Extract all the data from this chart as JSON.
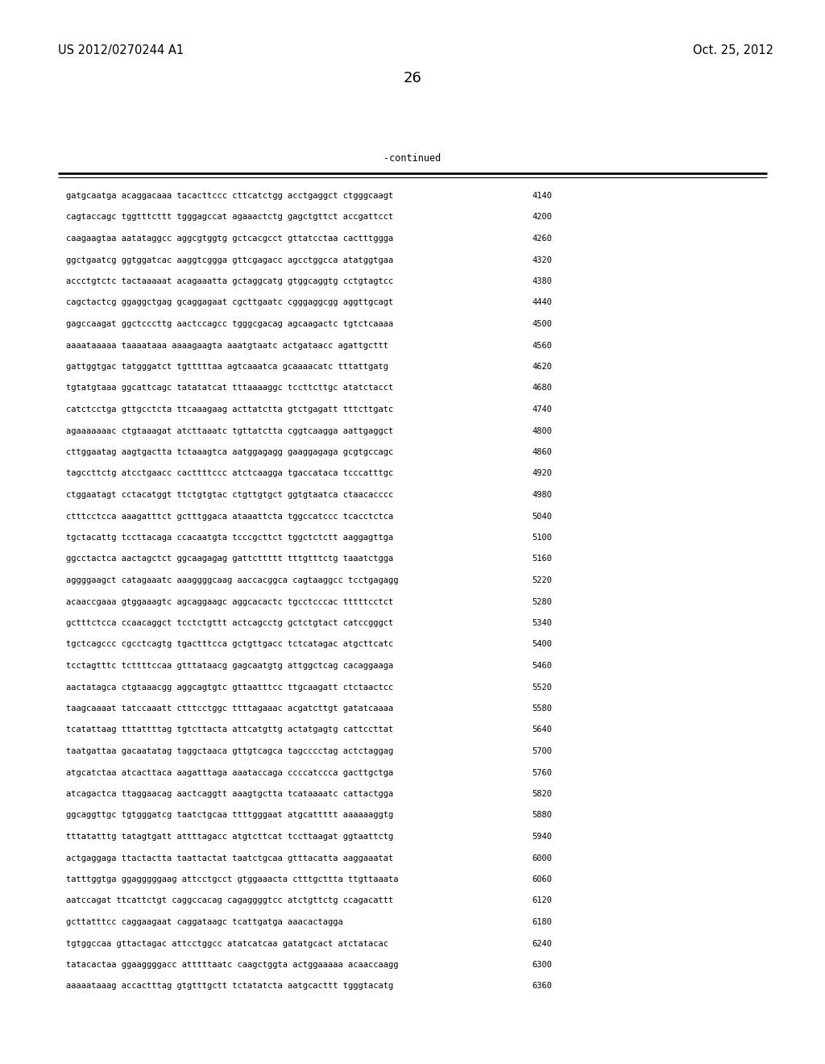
{
  "header_left": "US 2012/0270244 A1",
  "header_right": "Oct. 25, 2012",
  "page_number": "26",
  "continued_label": "-continued",
  "background_color": "#ffffff",
  "text_color": "#000000",
  "font_size_header": 10.5,
  "font_size_body": 7.5,
  "font_size_page": 13,
  "sequence_lines": [
    [
      "gatgcaatga acaggacaaa tacacttccc cttcatctgg acctgaggct ctgggcaagt",
      "4140"
    ],
    [
      "cagtaccagc tggtttcttt tgggagccat agaaactctg gagctgttct accgattcct",
      "4200"
    ],
    [
      "caagaagtaa aatataggcc aggcgtggtg gctcacgcct gttatcctaa cactttggga",
      "4260"
    ],
    [
      "ggctgaatcg ggtggatcac aaggtcggga gttcgagacc agcctggcca atatggtgaa",
      "4320"
    ],
    [
      "accctgtctc tactaaaaat acagaaatta gctaggcatg gtggcaggtg cctgtagtcc",
      "4380"
    ],
    [
      "cagctactcg ggaggctgag gcaggagaat cgcttgaatc cgggaggcgg aggttgcagt",
      "4440"
    ],
    [
      "gagccaagat ggctcccttg aactccagcc tgggcgacag agcaagactc tgtctcaaaa",
      "4500"
    ],
    [
      "aaaataaaaa taaaataaa aaaagaagta aaatgtaatc actgataacc agattgcttt",
      "4560"
    ],
    [
      "gattggtgac tatgggatct tgtttttaa agtcaaatca gcaaaacatc tttattgatg",
      "4620"
    ],
    [
      "tgtatgtaaa ggcattcagc tatatatcat tttaaaaggc tccttcttgc atatctacct",
      "4680"
    ],
    [
      "catctcctga gttgcctcta ttcaaagaag acttatctta gtctgagatt tttcttgatc",
      "4740"
    ],
    [
      "agaaaaaaac ctgtaaagat atcttaaatc tgttatctta cggtcaagga aattgaggct",
      "4800"
    ],
    [
      "cttggaatag aagtgactta tctaaagtca aatggagagg gaaggagaga gcgtgccagc",
      "4860"
    ],
    [
      "tagccttctg atcctgaacc cacttttccc atctcaagga tgaccataca tcccatttgc",
      "4920"
    ],
    [
      "ctggaatagt cctacatggt ttctgtgtac ctgttgtgct ggtgtaatca ctaacacccc",
      "4980"
    ],
    [
      "ctttcctcca aaagatttct gctttggaca ataaattcta tggccatccc tcacctctca",
      "5040"
    ],
    [
      "tgctacattg tccttacaga ccacaatgta tcccgcttct tggctctctt aaggagttga",
      "5100"
    ],
    [
      "ggcctactca aactagctct ggcaagagag gattcttttt tttgtttctg taaatctgga",
      "5160"
    ],
    [
      "aggggaagct catagaaatc aaaggggcaag aaccacggca cagtaaggcc tcctgagagg",
      "5220"
    ],
    [
      "acaaccgaaa gtggaaagtc agcaggaagc aggcacactc tgcctcccac tttttcctct",
      "5280"
    ],
    [
      "gctttctcca ccaacaggct tcctctgttt actcagcctg gctctgtact catccgggct",
      "5340"
    ],
    [
      "tgctcagccc cgcctcagtg tgactttcca gctgttgacc tctcatagac atgcttcatc",
      "5400"
    ],
    [
      "tcctagtttc tcttttccaa gtttataacg gagcaatgtg attggctcag cacaggaaga",
      "5460"
    ],
    [
      "aactatagca ctgtaaacgg aggcagtgtc gttaatttcc ttgcaagatt ctctaactcc",
      "5520"
    ],
    [
      "taagcaaaat tatccaaatt ctttcctggc ttttagaaac acgatcttgt gatatcaaaa",
      "5580"
    ],
    [
      "tcatattaag tttattttag tgtcttacta attcatgttg actatgagtg cattccttat",
      "5640"
    ],
    [
      "taatgattaa gacaatatag taggctaaca gttgtcagca tagcccctag actctaggag",
      "5700"
    ],
    [
      "atgcatctaa atcacttaca aagatttaga aaataccaga ccccatccca gacttgctga",
      "5760"
    ],
    [
      "atcagactca ttaggaacag aactcaggtt aaagtgctta tcataaaatc cattactgga",
      "5820"
    ],
    [
      "ggcaggttgc tgtgggatcg taatctgcaa ttttgggaat atgcattttt aaaaaaggtg",
      "5880"
    ],
    [
      "tttatatttg tatagtgatt attttagacc atgtcttcat tccttaagat ggtaattctg",
      "5940"
    ],
    [
      "actgaggaga ttactactta taattactat taatctgcaa gtttacatta aaggaaatat",
      "6000"
    ],
    [
      "tatttggtga ggagggggaag attcctgcct gtggaaacta ctttgcttta ttgttaaata",
      "6060"
    ],
    [
      "aatccagat ttcattctgt caggccacag cagaggggtcc atctgttctg ccagacattt",
      "6120"
    ],
    [
      "gcttatttcc caggaagaat caggataagc tcattgatga aaacactagga",
      "6180"
    ],
    [
      "tgtggccaa gttactagac attcctggcc atatcatcaa gatatgcact atctatacac",
      "6240"
    ],
    [
      "tatacactaa ggaaggggacc atttttaatc caagctggta actggaaaaa acaaccaagg",
      "6300"
    ],
    [
      "aaaaataaag accactttag gtgtttgctt tctatatcta aatgcacttt tgggtacatg",
      "6360"
    ]
  ]
}
